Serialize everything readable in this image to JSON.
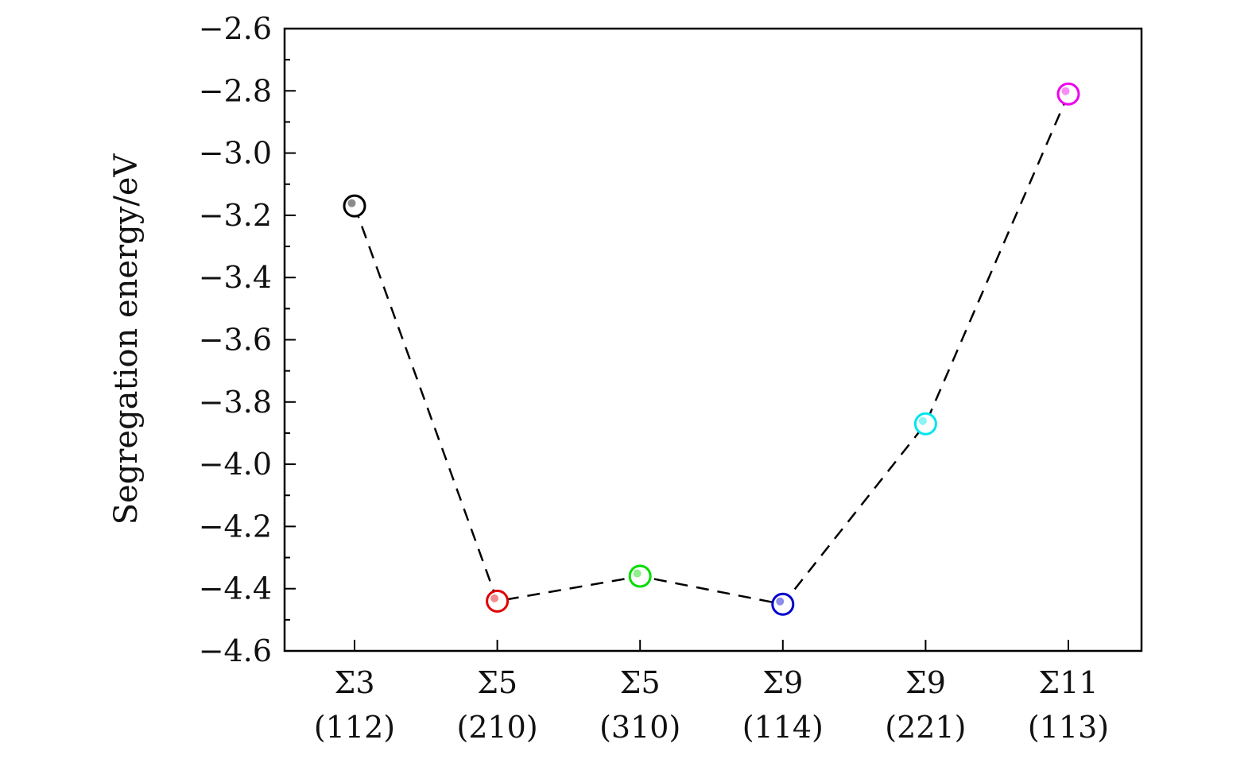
{
  "chart_data": {
    "type": "scatter",
    "ylabel": "Segregation energy/eV",
    "xlabel": "",
    "categories": [
      {
        "sigma": "Σ3",
        "plane": "(112)"
      },
      {
        "sigma": "Σ5",
        "plane": "(210)"
      },
      {
        "sigma": "Σ5",
        "plane": "(310)"
      },
      {
        "sigma": "Σ9",
        "plane": "(114)"
      },
      {
        "sigma": "Σ9",
        "plane": "(221)"
      },
      {
        "sigma": "Σ11",
        "plane": "(113)"
      }
    ],
    "values": [
      -3.17,
      -4.44,
      -4.36,
      -4.45,
      -3.87,
      -2.81
    ],
    "marker_colors": [
      "#000000",
      "#e00000",
      "#00dd00",
      "#0000cc",
      "#00e5ee",
      "#ee00ee"
    ],
    "ylim": [
      -4.6,
      -2.6
    ],
    "yticks": [
      "−2.6",
      "−2.8",
      "−3.0",
      "−3.2",
      "−3.4",
      "−3.6",
      "−3.8",
      "−4.0",
      "−4.2",
      "−4.4",
      "−4.6"
    ],
    "ytick_values": [
      -2.6,
      -2.8,
      -3.0,
      -3.2,
      -3.4,
      -3.6,
      -3.8,
      -4.0,
      -4.2,
      -4.4,
      -4.6
    ],
    "grid": false,
    "line_style": "dashed",
    "line_color": "#000000"
  }
}
